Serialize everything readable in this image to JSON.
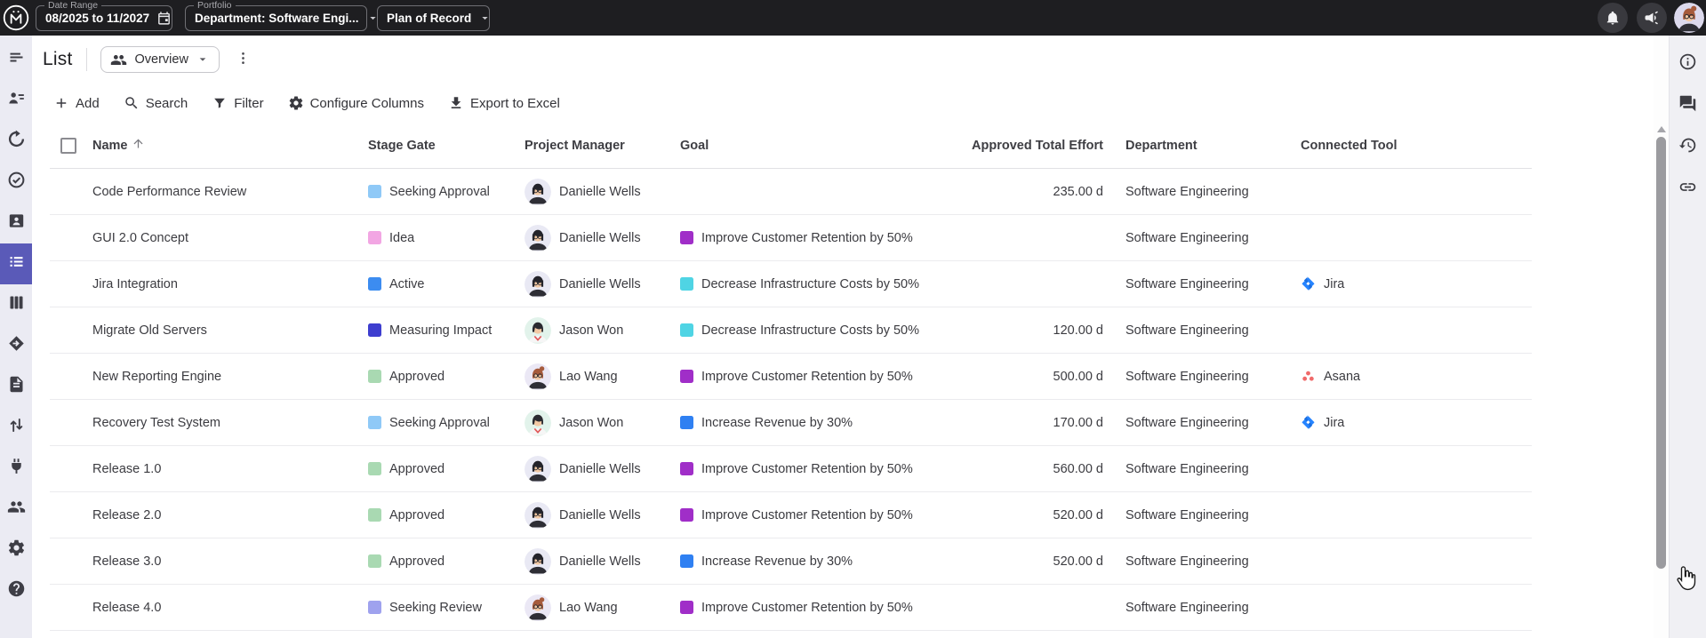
{
  "topbar": {
    "date_range": {
      "label": "Date Range",
      "value": "08/2025 to 11/2027"
    },
    "portfolio": {
      "label": "Portfolio",
      "value": "Department: Software Engi..."
    },
    "plan_of_record": {
      "value": "Plan of Record"
    }
  },
  "page": {
    "title": "List",
    "view": "Overview"
  },
  "toolbar": {
    "add": "Add",
    "search": "Search",
    "filter": "Filter",
    "configure_columns": "Configure Columns",
    "export_excel": "Export to Excel"
  },
  "sidebar": {
    "active": "project-list",
    "items": [
      {
        "id": "portfolio-designer",
        "icon": "menu-lines"
      },
      {
        "id": "team-planner",
        "icon": "person-rows"
      },
      {
        "id": "pivot",
        "icon": "cycle"
      },
      {
        "id": "goals",
        "icon": "target-check"
      },
      {
        "id": "resource-pool",
        "icon": "badge-person"
      },
      {
        "id": "project-list",
        "icon": "list"
      },
      {
        "id": "board",
        "icon": "board"
      },
      {
        "id": "roadmap",
        "icon": "roadmap"
      },
      {
        "id": "reports",
        "icon": "document"
      },
      {
        "id": "import-export",
        "icon": "updown"
      },
      {
        "id": "integrations",
        "icon": "plug"
      },
      {
        "id": "users",
        "icon": "group"
      },
      {
        "id": "settings",
        "icon": "gear"
      },
      {
        "id": "help",
        "icon": "help"
      }
    ]
  },
  "right_rail": {
    "items": [
      "info",
      "comments",
      "history",
      "link"
    ]
  },
  "table": {
    "sort": {
      "column": "Name",
      "direction": "asc"
    },
    "columns": [
      {
        "label": "Name",
        "key": "name",
        "sorted": true
      },
      {
        "label": "Stage Gate",
        "key": "stage"
      },
      {
        "label": "Project Manager",
        "key": "pm"
      },
      {
        "label": "Goal",
        "key": "goal"
      },
      {
        "label": "Approved Total Effort",
        "key": "effort",
        "align": "right"
      },
      {
        "label": "Department",
        "key": "department"
      },
      {
        "label": "Connected Tool",
        "key": "tool"
      }
    ],
    "rows": [
      {
        "name": "Code Performance Review",
        "stage": "Seeking Approval",
        "pm": "Danielle Wells",
        "goal": "",
        "effort": "235.00 d",
        "department": "Software Engineering",
        "tool": ""
      },
      {
        "name": "GUI 2.0 Concept",
        "stage": "Idea",
        "pm": "Danielle Wells",
        "goal": "Improve Customer Retention by 50%",
        "effort": "",
        "department": "Software Engineering",
        "tool": ""
      },
      {
        "name": "Jira Integration",
        "stage": "Active",
        "pm": "Danielle Wells",
        "goal": "Decrease Infrastructure Costs by 50%",
        "effort": "",
        "department": "Software Engineering",
        "tool": "Jira"
      },
      {
        "name": "Migrate Old Servers",
        "stage": "Measuring Impact",
        "pm": "Jason Won",
        "goal": "Decrease Infrastructure Costs by 50%",
        "effort": "120.00 d",
        "department": "Software Engineering",
        "tool": ""
      },
      {
        "name": "New Reporting Engine",
        "stage": "Approved",
        "pm": "Lao Wang",
        "goal": "Improve Customer Retention by 50%",
        "effort": "500.00 d",
        "department": "Software Engineering",
        "tool": "Asana"
      },
      {
        "name": "Recovery Test System",
        "stage": "Seeking Approval",
        "pm": "Jason Won",
        "goal": "Increase Revenue by 30%",
        "effort": "170.00 d",
        "department": "Software Engineering",
        "tool": "Jira"
      },
      {
        "name": "Release 1.0",
        "stage": "Approved",
        "pm": "Danielle Wells",
        "goal": "Improve Customer Retention by 50%",
        "effort": "560.00 d",
        "department": "Software Engineering",
        "tool": ""
      },
      {
        "name": "Release 2.0",
        "stage": "Approved",
        "pm": "Danielle Wells",
        "goal": "Improve Customer Retention by 50%",
        "effort": "520.00 d",
        "department": "Software Engineering",
        "tool": ""
      },
      {
        "name": "Release 3.0",
        "stage": "Approved",
        "pm": "Danielle Wells",
        "goal": "Increase Revenue by 30%",
        "effort": "520.00 d",
        "department": "Software Engineering",
        "tool": ""
      },
      {
        "name": "Release 4.0",
        "stage": "Seeking Review",
        "pm": "Lao Wang",
        "goal": "Improve Customer Retention by 50%",
        "effort": "",
        "department": "Software Engineering",
        "tool": ""
      }
    ],
    "stage_colors": {
      "Seeking Approval": "#8fc9f7",
      "Idea": "#f2a6e3",
      "Active": "#3c8cf0",
      "Measuring Impact": "#3e3ecf",
      "Approved": "#a9d9b2",
      "Seeking Review": "#9fa2ee"
    },
    "goal_colors": {
      "Improve Customer Retention by 50%": "#a02ec8",
      "Decrease Infrastructure Costs by 50%": "#4fd4e4",
      "Increase Revenue by 30%": "#2f80f2"
    },
    "tools": {
      "Jira": {
        "icon": "jira",
        "color": "#2684ff"
      },
      "Asana": {
        "icon": "asana",
        "color": "#f06a6a"
      }
    },
    "people": {
      "Danielle Wells": {
        "bg": "#e9e9f4",
        "hair": "#23232a",
        "skin": "#f3c9a4",
        "shirt": "#2e2e35",
        "glasses": true,
        "bob": true
      },
      "Jason Won": {
        "bg": "#e2f3eb",
        "hair": "#2a2a30",
        "skin": "#f3c9a4",
        "shirt": "#f6f6f6",
        "collar": "#e05a5a"
      },
      "Lao Wang": {
        "bg": "#ebe8f5",
        "hair": "#a65b3c",
        "skin": "#f3c9a4",
        "shirt": "#2e2e35",
        "glasses": true,
        "bun": true
      }
    },
    "current_user": {
      "bg": "#dcd9ec",
      "hair": "#a65b3c",
      "skin": "#f3c9a4",
      "shirt": "#2e2e35",
      "glasses": true,
      "bun": true
    }
  }
}
